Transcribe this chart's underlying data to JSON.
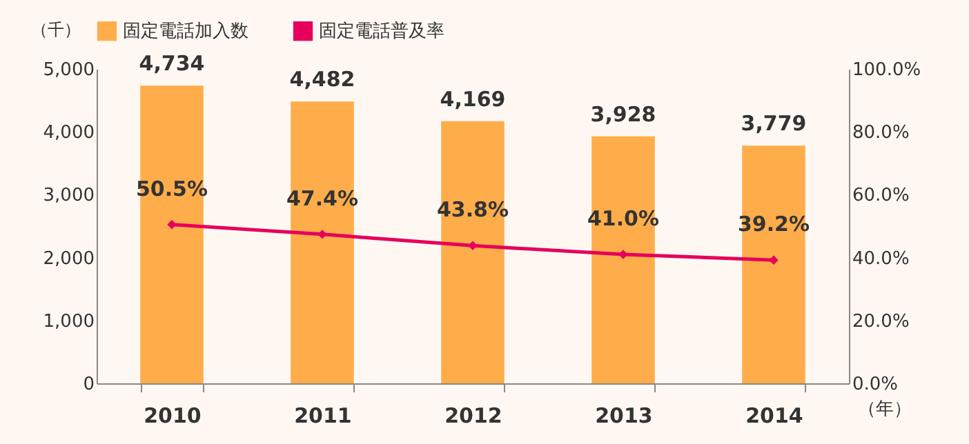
{
  "chart_data": {
    "type": "bar",
    "categories": [
      "2010",
      "2011",
      "2012",
      "2013",
      "2014"
    ],
    "series": [
      {
        "name": "固定電話加入数",
        "color": "#ffad4b",
        "values": [
          4734,
          4482,
          4169,
          3928,
          3779
        ],
        "value_labels": [
          "4,734",
          "4,482",
          "4,169",
          "3,928",
          "3,779"
        ]
      },
      {
        "name": "固定電話普及率",
        "type": "line",
        "axis": "y2",
        "color": "#e6005c",
        "values": [
          50.5,
          47.4,
          43.8,
          41.0,
          39.2
        ],
        "value_labels": [
          "50.5%",
          "47.4%",
          "43.8%",
          "41.0%",
          "39.2%"
        ]
      }
    ],
    "ylabel": "（千）",
    "xlabel": "（年）",
    "ylim": [
      0,
      5000
    ],
    "yticks": [
      {
        "value": 0,
        "label": "0"
      },
      {
        "value": 1000,
        "label": "1,000"
      },
      {
        "value": 2000,
        "label": "2,000"
      },
      {
        "value": 3000,
        "label": "3,000"
      },
      {
        "value": 4000,
        "label": "4,000"
      },
      {
        "value": 5000,
        "label": "5,000"
      }
    ],
    "y2lim": [
      0,
      100
    ],
    "y2ticks": [
      {
        "value": 0,
        "label": "0.0%"
      },
      {
        "value": 20,
        "label": "20.0%"
      },
      {
        "value": 40,
        "label": "40.0%"
      },
      {
        "value": 60,
        "label": "60.0%"
      },
      {
        "value": 80,
        "label": "80.0%"
      },
      {
        "value": 100,
        "label": "100.0%"
      }
    ],
    "legend": "top",
    "marker": "diamond"
  }
}
